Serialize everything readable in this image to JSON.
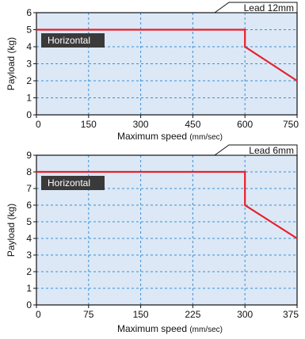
{
  "chart_data": [
    {
      "type": "line",
      "lead_label": "Lead 12mm",
      "badge_label": "Horizontal",
      "xlabel": "Maximum speed",
      "xunit": "(mm/sec)",
      "ylabel": "Payload (kg)",
      "xlim": [
        0,
        750
      ],
      "ylim": [
        0,
        6
      ],
      "xticks": [
        "0",
        "150",
        "300",
        "450",
        "600",
        "750"
      ],
      "yticks": [
        "0",
        "1",
        "2",
        "3",
        "4",
        "5",
        "6"
      ],
      "xtick_values": [
        0,
        150,
        300,
        450,
        600,
        750
      ],
      "ytick_values": [
        0,
        1,
        2,
        3,
        4,
        5,
        6
      ],
      "grid": true,
      "series": [
        {
          "x": [
            0,
            600,
            600,
            750
          ],
          "y": [
            5,
            5,
            4,
            2
          ]
        }
      ],
      "colors": {
        "plot_bg": "#dce8f6",
        "grid": "#3a8fd6",
        "line": "#e8202a",
        "badge": "#3a3a3a"
      }
    },
    {
      "type": "line",
      "lead_label": "Lead 6mm",
      "badge_label": "Horizontal",
      "xlabel": "Maximum speed",
      "xunit": "(mm/sec)",
      "ylabel": "Payload (kg)",
      "xlim": [
        0,
        375
      ],
      "ylim": [
        0,
        9
      ],
      "xticks": [
        "0",
        "75",
        "150",
        "225",
        "300",
        "375"
      ],
      "yticks": [
        "0",
        "1",
        "2",
        "3",
        "4",
        "5",
        "6",
        "7",
        "8",
        "9"
      ],
      "xtick_values": [
        0,
        75,
        150,
        225,
        300,
        375
      ],
      "ytick_values": [
        0,
        1,
        2,
        3,
        4,
        5,
        6,
        7,
        8,
        9
      ],
      "grid": true,
      "series": [
        {
          "x": [
            0,
            300,
            300,
            375
          ],
          "y": [
            8,
            8,
            6,
            4
          ]
        }
      ],
      "colors": {
        "plot_bg": "#dce8f6",
        "grid": "#3a8fd6",
        "line": "#e8202a",
        "badge": "#3a3a3a"
      }
    }
  ]
}
